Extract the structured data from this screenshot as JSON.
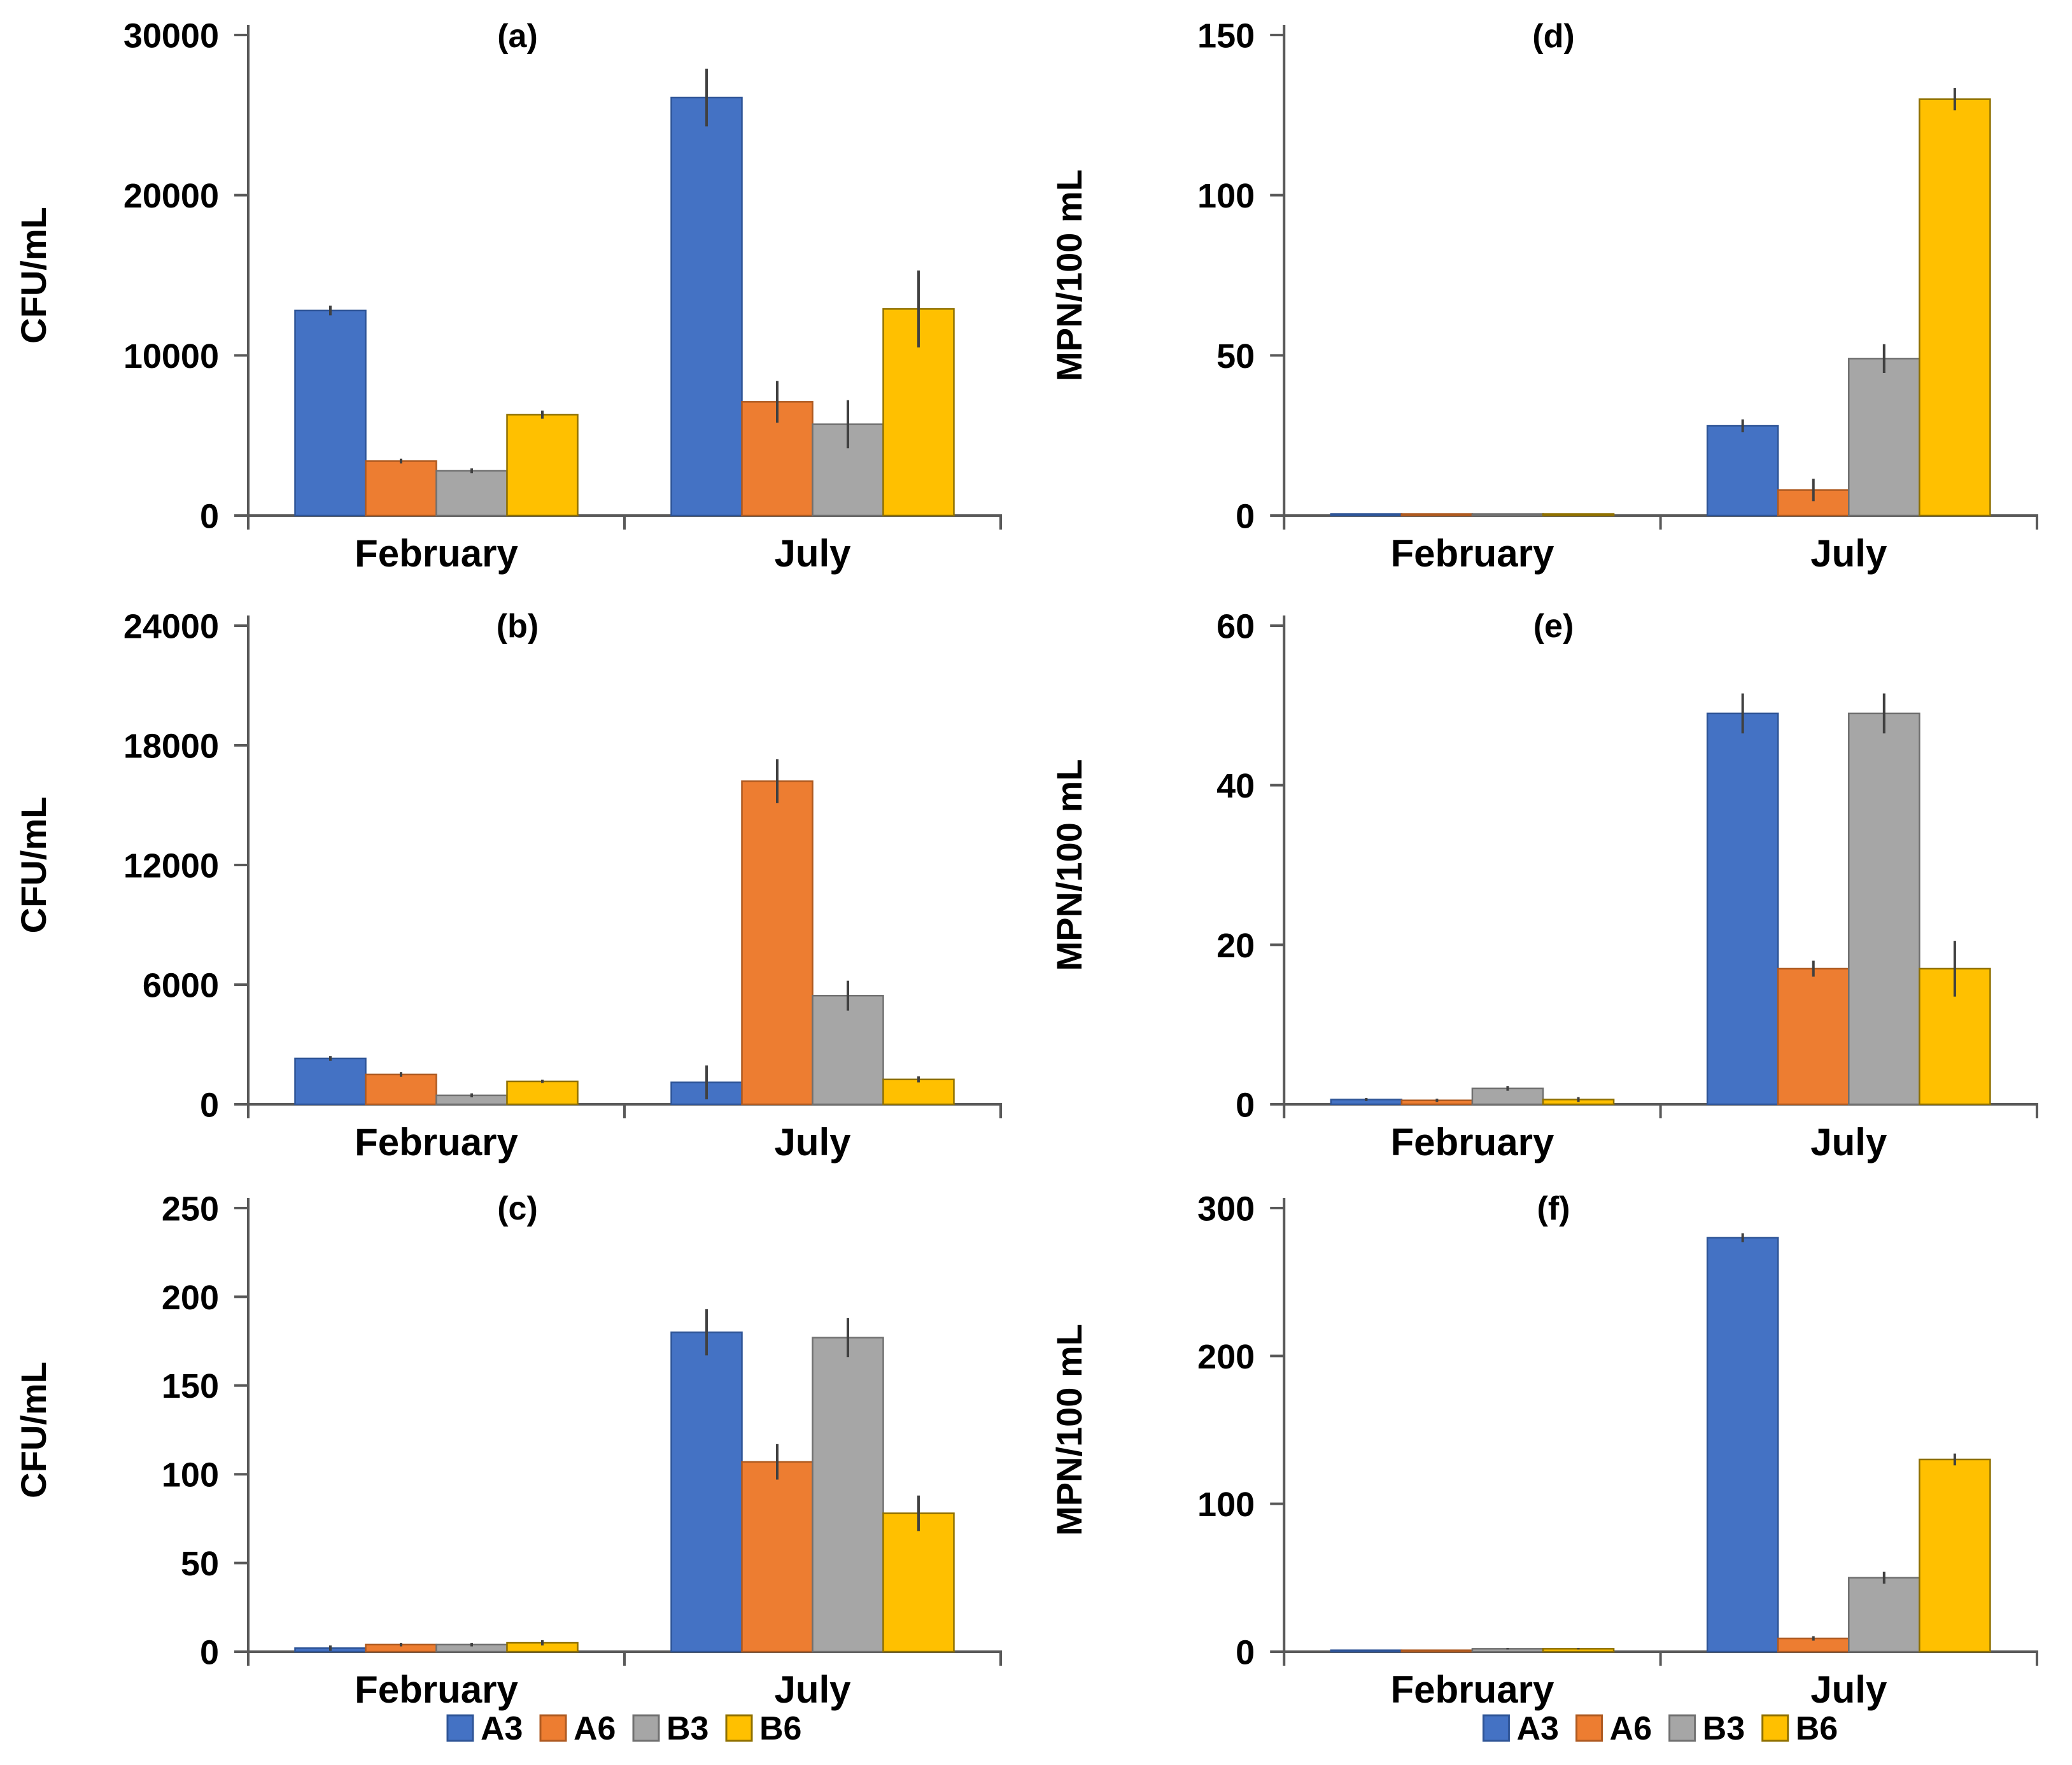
{
  "figure": {
    "background": "#FFFFFF",
    "axis_color": "#595959",
    "error_bar_color": "#404040",
    "text_color": "#000000",
    "categories": [
      "February",
      "July"
    ],
    "series_names": [
      "A3",
      "A6",
      "B3",
      "B6"
    ],
    "palette": {
      "A3": {
        "fill": "#4472C4",
        "border": "#2F5597"
      },
      "A6": {
        "fill": "#ED7D31",
        "border": "#AE5A21"
      },
      "B3": {
        "fill": "#A6A6A6",
        "border": "#707070"
      },
      "B6": {
        "fill": "#FFC000",
        "border": "#8F7000"
      }
    },
    "legend": {
      "entries": [
        "A3",
        "A6",
        "B3",
        "B6"
      ]
    }
  },
  "chart_data": [
    {
      "id": "a",
      "type": "bar",
      "panel_label": "(a)",
      "ylabel": "CFU/mL",
      "ylim": [
        0,
        30000
      ],
      "yticks": [
        0,
        10000,
        20000,
        30000
      ],
      "ytick_labels": [
        "0",
        "10000",
        "20000",
        "30000"
      ],
      "categories": [
        "February",
        "July"
      ],
      "series": [
        {
          "name": "A3",
          "values": [
            12800,
            26100
          ],
          "errors": [
            300,
            1800
          ]
        },
        {
          "name": "A6",
          "values": [
            3400,
            7100
          ],
          "errors": [
            150,
            1300
          ]
        },
        {
          "name": "B3",
          "values": [
            2800,
            5700
          ],
          "errors": [
            150,
            1500
          ]
        },
        {
          "name": "B6",
          "values": [
            6300,
            12900
          ],
          "errors": [
            250,
            2400
          ]
        }
      ],
      "legend": false
    },
    {
      "id": "b",
      "type": "bar",
      "panel_label": "(b)",
      "ylabel": "CFU/mL",
      "ylim": [
        0,
        24000
      ],
      "yticks": [
        0,
        6000,
        12000,
        18000,
        24000
      ],
      "ytick_labels": [
        "0",
        "6000",
        "12000",
        "18000",
        "24000"
      ],
      "categories": [
        "February",
        "July"
      ],
      "series": [
        {
          "name": "A3",
          "values": [
            2300,
            1100
          ],
          "errors": [
            120,
            850
          ]
        },
        {
          "name": "A6",
          "values": [
            1500,
            16200
          ],
          "errors": [
            120,
            1100
          ]
        },
        {
          "name": "B3",
          "values": [
            450,
            5450
          ],
          "errors": [
            100,
            750
          ]
        },
        {
          "name": "B6",
          "values": [
            1150,
            1250
          ],
          "errors": [
            80,
            150
          ]
        }
      ],
      "legend": false
    },
    {
      "id": "c",
      "type": "bar",
      "panel_label": "(c)",
      "ylabel": "CFU/mL",
      "ylim": [
        0,
        250
      ],
      "yticks": [
        0,
        50,
        100,
        150,
        200,
        250
      ],
      "ytick_labels": [
        "0",
        "50",
        "100",
        "150",
        "200",
        "250"
      ],
      "categories": [
        "February",
        "July"
      ],
      "series": [
        {
          "name": "A3",
          "values": [
            2,
            180
          ],
          "errors": [
            1.5,
            13
          ]
        },
        {
          "name": "A6",
          "values": [
            4,
            107
          ],
          "errors": [
            1,
            10
          ]
        },
        {
          "name": "B3",
          "values": [
            4,
            177
          ],
          "errors": [
            1,
            11
          ]
        },
        {
          "name": "B6",
          "values": [
            5,
            78
          ],
          "errors": [
            1.5,
            10
          ]
        }
      ],
      "legend": true
    },
    {
      "id": "d",
      "type": "bar",
      "panel_label": "(d)",
      "ylabel": "MPN/100 mL",
      "ylim": [
        0,
        150
      ],
      "yticks": [
        0,
        50,
        100,
        150
      ],
      "ytick_labels": [
        "0",
        "50",
        "100",
        "150"
      ],
      "categories": [
        "February",
        "July"
      ],
      "series": [
        {
          "name": "A3",
          "values": [
            0.5,
            28
          ],
          "errors": [
            0,
            2
          ]
        },
        {
          "name": "A6",
          "values": [
            0.5,
            8
          ],
          "errors": [
            0,
            3.5
          ]
        },
        {
          "name": "B3",
          "values": [
            0.5,
            49
          ],
          "errors": [
            0,
            4.5
          ]
        },
        {
          "name": "B6",
          "values": [
            0.5,
            130
          ],
          "errors": [
            0,
            3.5
          ]
        }
      ],
      "legend": false
    },
    {
      "id": "e",
      "type": "bar",
      "panel_label": "(e)",
      "ylabel": "MPN/100 mL",
      "ylim": [
        0,
        60
      ],
      "yticks": [
        0,
        20,
        40,
        60
      ],
      "ytick_labels": [
        "0",
        "20",
        "40",
        "60"
      ],
      "categories": [
        "February",
        "July"
      ],
      "series": [
        {
          "name": "A3",
          "values": [
            0.6,
            49
          ],
          "errors": [
            0.2,
            2.5
          ]
        },
        {
          "name": "A6",
          "values": [
            0.5,
            17
          ],
          "errors": [
            0.2,
            1
          ]
        },
        {
          "name": "B3",
          "values": [
            2,
            49
          ],
          "errors": [
            0.3,
            2.5
          ]
        },
        {
          "name": "B6",
          "values": [
            0.6,
            17
          ],
          "errors": [
            0.3,
            3.5
          ]
        }
      ],
      "legend": false
    },
    {
      "id": "f",
      "type": "bar",
      "panel_label": "(f)",
      "ylabel": "MPN/100 mL",
      "ylim": [
        0,
        300
      ],
      "yticks": [
        0,
        100,
        200,
        300
      ],
      "ytick_labels": [
        "0",
        "100",
        "200",
        "300"
      ],
      "categories": [
        "February",
        "July"
      ],
      "series": [
        {
          "name": "A3",
          "values": [
            1,
            280
          ],
          "errors": [
            0,
            3
          ]
        },
        {
          "name": "A6",
          "values": [
            1,
            9
          ],
          "errors": [
            0,
            1.5
          ]
        },
        {
          "name": "B3",
          "values": [
            2,
            50
          ],
          "errors": [
            0.5,
            4
          ]
        },
        {
          "name": "B6",
          "values": [
            2,
            130
          ],
          "errors": [
            0.5,
            4
          ]
        }
      ],
      "legend": true
    }
  ]
}
